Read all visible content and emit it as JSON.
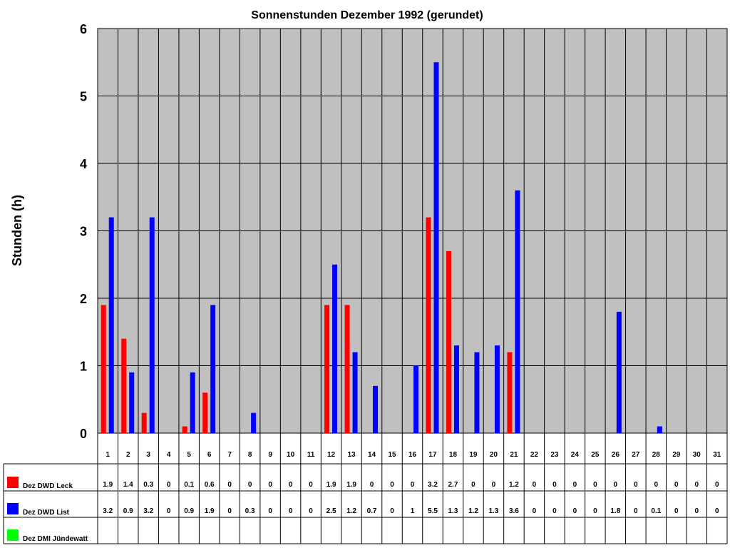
{
  "chart_data": {
    "type": "bar",
    "title": "Sonnenstunden Dezember 1992 (gerundet)",
    "xlabel": "",
    "ylabel": "Stunden (h)",
    "ylim": [
      0,
      6
    ],
    "yticks": [
      0,
      1,
      2,
      3,
      4,
      5,
      6
    ],
    "grid": true,
    "legend_placement": "bottom-table",
    "categories": [
      "1",
      "2",
      "3",
      "4",
      "5",
      "6",
      "7",
      "8",
      "9",
      "10",
      "11",
      "12",
      "13",
      "14",
      "15",
      "16",
      "17",
      "18",
      "19",
      "20",
      "21",
      "22",
      "23",
      "24",
      "25",
      "26",
      "27",
      "28",
      "29",
      "30",
      "31"
    ],
    "series": [
      {
        "name": "Dez DWD Leck",
        "color": "#ff0000",
        "values": [
          1.9,
          1.4,
          0.3,
          0,
          0.1,
          0.6,
          0,
          0,
          0,
          0,
          0,
          1.9,
          1.9,
          0,
          0,
          0,
          3.2,
          2.7,
          0,
          0,
          1.2,
          0,
          0,
          0,
          0,
          0,
          0,
          0,
          0,
          0,
          0
        ]
      },
      {
        "name": "Dez DWD List",
        "color": "#0000ff",
        "values": [
          3.2,
          0.9,
          3.2,
          0,
          0.9,
          1.9,
          0,
          0.3,
          0,
          0,
          0,
          2.5,
          1.2,
          0.7,
          0,
          1,
          5.5,
          1.3,
          1.2,
          1.3,
          3.6,
          0,
          0,
          0,
          0,
          1.8,
          0,
          0.1,
          0,
          0,
          0
        ]
      },
      {
        "name": "Dez DMI Jündewatt",
        "color": "#00ff00",
        "values": [
          null,
          null,
          null,
          null,
          null,
          null,
          null,
          null,
          null,
          null,
          null,
          null,
          null,
          null,
          null,
          null,
          null,
          null,
          null,
          null,
          null,
          null,
          null,
          null,
          null,
          null,
          null,
          null,
          null,
          null,
          null
        ]
      }
    ]
  },
  "colors": {
    "plot_background": "#c0c0c0",
    "gridline": "#000000"
  }
}
